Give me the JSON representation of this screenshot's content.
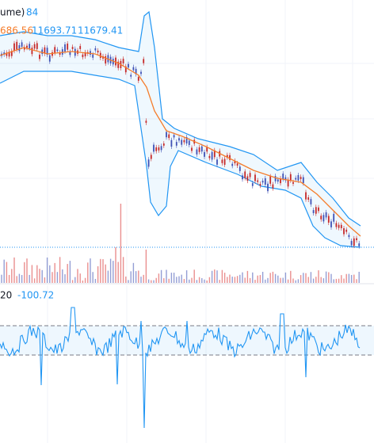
{
  "header": {
    "volume_label": "ume)",
    "volume_value": "84",
    "ma_value": "686.56",
    "upper_band": "11693.71",
    "lower_band": "11679.41"
  },
  "indicator": {
    "period": "20",
    "value": "-100.72"
  }
}
